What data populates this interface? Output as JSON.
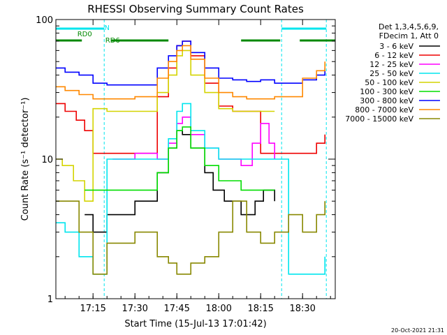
{
  "chart_data": {
    "type": "line",
    "title": "RHESSI Observing Summary Count Rates",
    "xlabel": "Start Time (15-Jul-13 17:01:42)",
    "ylabel": "Count Rate (s⁻¹ detector⁻¹)",
    "y_scale": "log",
    "ylim": [
      1,
      100
    ],
    "xlim": [
      "17:01:42",
      "18:41:42"
    ],
    "x_ticks": [
      "17:15",
      "17:30",
      "17:45",
      "18:00",
      "18:15",
      "18:30"
    ],
    "y_ticks": [
      "1",
      "10",
      "100"
    ],
    "grid": false,
    "legend_placement": "right",
    "legend_header": [
      "Det 1,3,4,5,6,9,",
      "FDecim 1, Att 0"
    ],
    "footer_date": "20-Oct-2021 21:31",
    "annotations": [
      {
        "text": "N",
        "color": "#00e5ee"
      },
      {
        "text": "RD0",
        "color": "#008800"
      },
      {
        "text": "RD6",
        "color": "#008800"
      }
    ],
    "night_intervals": [
      [
        "17:01:42",
        "17:19:00"
      ],
      [
        "18:22:30",
        "18:38:30"
      ]
    ],
    "saa_intervals": [
      [
        "17:01:42",
        "17:11:00"
      ],
      [
        "17:21:30",
        "17:42:00"
      ],
      [
        "18:08:00",
        "18:22:00"
      ],
      [
        "18:29:00",
        "18:41:42"
      ]
    ],
    "series": [
      {
        "name": "3 - 6 keV",
        "color": "#000000",
        "x": [
          "17:12",
          "17:15",
          "17:20",
          "17:30",
          "17:38",
          "17:42",
          "17:45",
          "17:47",
          "17:50",
          "17:55",
          "17:58",
          "18:02",
          "18:08",
          "18:13",
          "18:16",
          "18:20"
        ],
        "y": [
          4,
          3,
          4,
          5,
          8,
          12,
          16,
          15,
          12,
          8,
          6,
          5,
          4,
          5,
          6,
          5
        ]
      },
      {
        "name": "6 - 12 keV",
        "color": "#ee0000",
        "x": [
          "17:01:42",
          "17:05",
          "17:09",
          "17:12",
          "17:15",
          "17:20",
          "17:30",
          "17:38",
          "17:42",
          "17:45",
          "17:47",
          "17:50",
          "17:55",
          "18:00",
          "18:05",
          "18:15",
          "18:20",
          "18:30",
          "18:35",
          "18:38"
        ],
        "y": [
          25,
          22,
          19,
          16,
          11,
          11,
          11,
          28,
          45,
          65,
          70,
          55,
          35,
          24,
          22,
          11,
          11,
          11,
          13,
          15
        ]
      },
      {
        "name": "12 - 25 keV",
        "color": "#ff00ff",
        "x": [
          "17:22",
          "17:30",
          "17:38",
          "17:42",
          "17:45",
          "17:47",
          "17:50",
          "17:55",
          "18:00",
          "18:08",
          "18:12",
          "18:15",
          "18:18",
          "18:20"
        ],
        "y": [
          10,
          11,
          10,
          13,
          18,
          20,
          15,
          12,
          10,
          9,
          13,
          18,
          13,
          10
        ]
      },
      {
        "name": "25 - 50 keV",
        "color": "#00e5ee",
        "x": [
          "17:01:42",
          "17:05",
          "17:10",
          "17:15",
          "17:20",
          "17:30",
          "17:38",
          "17:42",
          "17:45",
          "17:47",
          "17:50",
          "17:55",
          "18:00",
          "18:08",
          "18:12",
          "18:15",
          "18:20",
          "18:25",
          "18:30",
          "18:38"
        ],
        "y": [
          3.5,
          3,
          2,
          1.5,
          10,
          10,
          10,
          14,
          22,
          25,
          16,
          12,
          10,
          10,
          10,
          10,
          10,
          1.5,
          1.5,
          2
        ]
      },
      {
        "name": "50 - 100 keV",
        "color": "#d4d400",
        "x": [
          "17:01:42",
          "17:04",
          "17:08",
          "17:12",
          "17:15",
          "17:20",
          "17:30",
          "17:38",
          "17:42",
          "17:45",
          "17:47",
          "17:50",
          "17:55",
          "18:00",
          "18:05",
          "18:10",
          "18:15",
          "18:20"
        ],
        "y": [
          10,
          9,
          7,
          5,
          23,
          22,
          22,
          30,
          40,
          55,
          60,
          40,
          30,
          23,
          22,
          22,
          22,
          22
        ]
      },
      {
        "name": "100 - 300 keV",
        "color": "#00dd00",
        "x": [
          "17:12",
          "17:15",
          "17:20",
          "17:30",
          "17:38",
          "17:42",
          "17:45",
          "17:47",
          "17:50",
          "17:55",
          "18:00",
          "18:08",
          "18:15",
          "18:20"
        ],
        "y": [
          6,
          6,
          6,
          6,
          8,
          12,
          16,
          17,
          12,
          9,
          7,
          6,
          6,
          6
        ]
      },
      {
        "name": "300 - 800 keV",
        "color": "#0000ff",
        "x": [
          "17:01:42",
          "17:05",
          "17:10",
          "17:15",
          "17:20",
          "17:30",
          "17:38",
          "17:42",
          "17:45",
          "17:47",
          "17:50",
          "17:55",
          "18:00",
          "18:05",
          "18:10",
          "18:15",
          "18:20",
          "18:30",
          "18:35",
          "18:38"
        ],
        "y": [
          45,
          42,
          40,
          35,
          34,
          34,
          45,
          55,
          65,
          70,
          58,
          45,
          38,
          37,
          36,
          37,
          35,
          37,
          40,
          45
        ]
      },
      {
        "name": "800 - 7000 keV",
        "color": "#ff8800",
        "x": [
          "17:01:42",
          "17:05",
          "17:10",
          "17:15",
          "17:20",
          "17:30",
          "17:38",
          "17:42",
          "17:45",
          "17:47",
          "17:50",
          "17:55",
          "18:00",
          "18:05",
          "18:10",
          "18:15",
          "18:20",
          "18:30",
          "18:35",
          "18:38"
        ],
        "y": [
          33,
          31,
          29,
          27,
          27,
          28,
          38,
          50,
          60,
          65,
          52,
          38,
          30,
          28,
          27,
          27,
          28,
          38,
          43,
          50
        ]
      },
      {
        "name": "7000 - 15000 keV",
        "color": "#888800",
        "x": [
          "17:01:42",
          "17:05",
          "17:10",
          "17:15",
          "17:20",
          "17:30",
          "17:38",
          "17:42",
          "17:45",
          "17:50",
          "17:55",
          "18:00",
          "18:05",
          "18:10",
          "18:15",
          "18:20",
          "18:25",
          "18:30",
          "18:35",
          "18:38"
        ],
        "y": [
          5,
          5,
          3,
          1.5,
          2.5,
          3,
          2,
          1.8,
          1.5,
          1.8,
          2,
          3,
          5,
          3,
          2.5,
          3,
          4,
          3,
          4,
          5
        ]
      }
    ]
  }
}
